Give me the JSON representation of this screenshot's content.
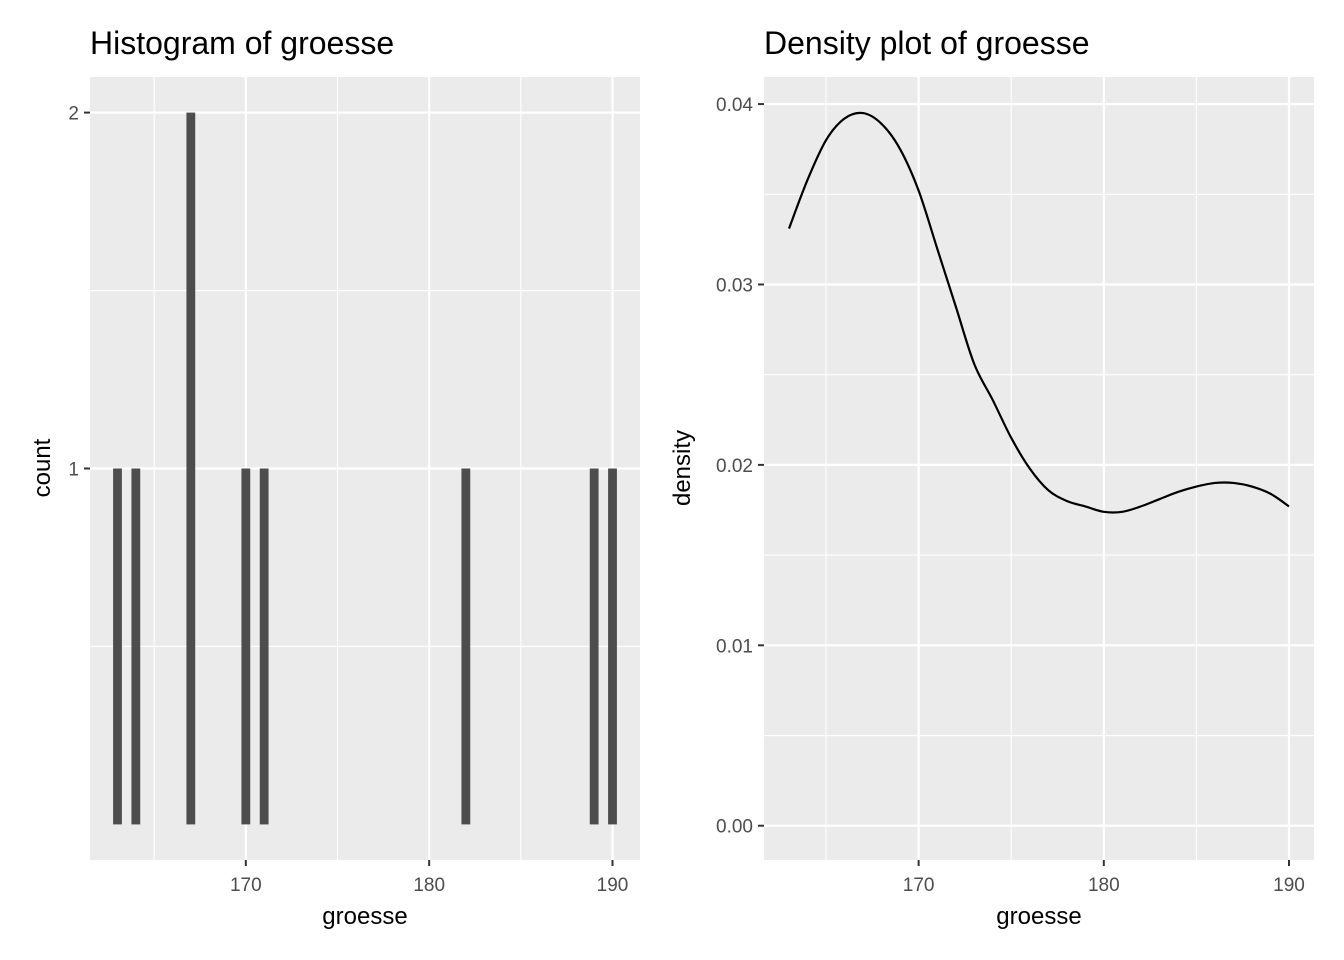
{
  "chart_data": [
    {
      "type": "bar",
      "title": "Histogram of groesse",
      "xlabel": "groesse",
      "ylabel": "count",
      "xlim": [
        161.5,
        191.5
      ],
      "ylim": [
        -0.1,
        2.1
      ],
      "x_ticks": [
        170,
        180,
        190
      ],
      "x_tick_labels": [
        "170",
        "180",
        "190"
      ],
      "y_ticks": [
        1,
        2
      ],
      "y_tick_labels": [
        "1",
        "2"
      ],
      "bin_width": 0.5,
      "bars": [
        {
          "x": 163,
          "count": 1
        },
        {
          "x": 164,
          "count": 1
        },
        {
          "x": 167,
          "count": 2
        },
        {
          "x": 170,
          "count": 1
        },
        {
          "x": 171,
          "count": 1
        },
        {
          "x": 182,
          "count": 1
        },
        {
          "x": 189,
          "count": 1
        },
        {
          "x": 190,
          "count": 1
        }
      ],
      "grid": true
    },
    {
      "type": "line",
      "title": "Density plot of groesse",
      "xlabel": "groesse",
      "ylabel": "density",
      "xlim": [
        161.65,
        191.35
      ],
      "ylim": [
        -0.0019,
        0.0415
      ],
      "x_ticks": [
        170,
        180,
        190
      ],
      "x_tick_labels": [
        "170",
        "180",
        "190"
      ],
      "y_ticks": [
        0,
        0.01,
        0.02,
        0.03,
        0.04
      ],
      "y_tick_labels": [
        "0.00",
        "0.01",
        "0.02",
        "0.03",
        "0.04"
      ],
      "x": [
        163,
        164,
        165,
        166,
        167,
        168,
        169,
        170,
        171,
        172,
        173,
        174,
        175,
        176,
        177,
        178,
        179,
        180,
        181,
        182,
        183,
        184,
        185,
        186,
        187,
        188,
        189,
        190
      ],
      "y": [
        0.0331,
        0.0358,
        0.038,
        0.0392,
        0.0395,
        0.0389,
        0.0375,
        0.0352,
        0.032,
        0.0288,
        0.0256,
        0.0236,
        0.0215,
        0.0198,
        0.0186,
        0.018,
        0.0177,
        0.0174,
        0.0174,
        0.0177,
        0.0181,
        0.0185,
        0.0188,
        0.019,
        0.019,
        0.0188,
        0.0184,
        0.0177
      ],
      "grid": true
    }
  ]
}
